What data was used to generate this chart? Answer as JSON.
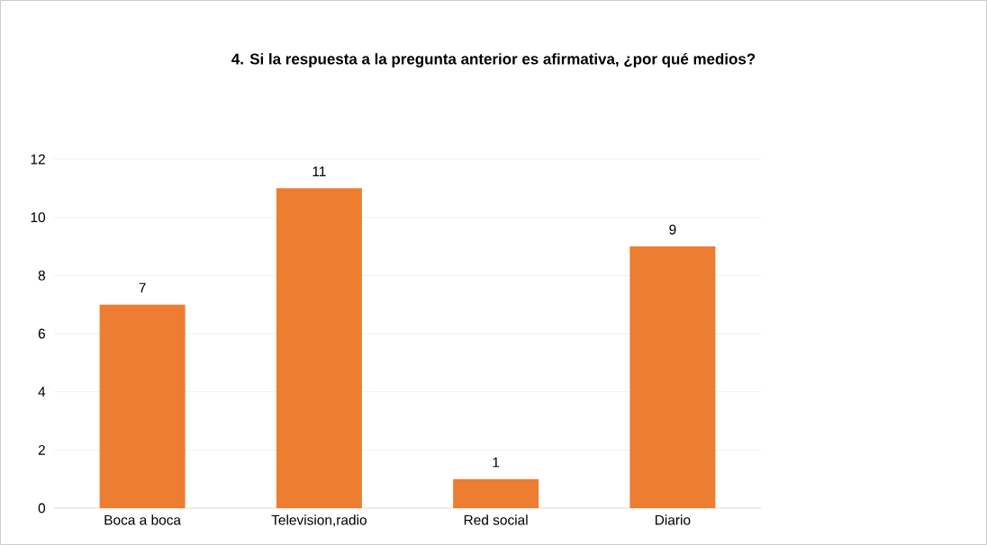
{
  "chart_data": {
    "type": "bar",
    "title": "4. Si la respuesta a la pregunta anterior es afirmativa, ¿por qué medios?",
    "categories": [
      "Boca a boca",
      "Television,radio",
      "Red social",
      "Diario"
    ],
    "values": [
      7,
      11,
      1,
      9
    ],
    "color": "#ed7d31",
    "ylim": [
      0,
      12
    ],
    "yticks": [
      0,
      2,
      4,
      6,
      8,
      10,
      12
    ],
    "grid": "y",
    "data_labels": true
  }
}
